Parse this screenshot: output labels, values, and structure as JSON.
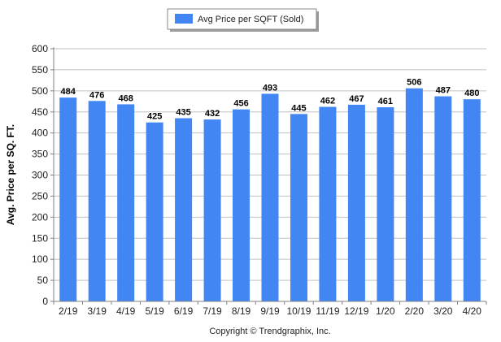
{
  "chart_data": {
    "type": "bar",
    "categories": [
      "2/19",
      "3/19",
      "4/19",
      "5/19",
      "6/19",
      "7/19",
      "8/19",
      "9/19",
      "10/19",
      "11/19",
      "12/19",
      "1/20",
      "2/20",
      "3/20",
      "4/20"
    ],
    "series": [
      {
        "name": "Avg Price per SQFT (Sold)",
        "values": [
          484,
          476,
          468,
          425,
          435,
          432,
          456,
          493,
          445,
          462,
          467,
          461,
          506,
          487,
          480
        ],
        "color": "#4286f4"
      }
    ],
    "ylabel": "Avg. Price per SQ. FT.",
    "ylim": [
      0,
      600
    ],
    "yticks": [
      0,
      50,
      100,
      150,
      200,
      250,
      300,
      350,
      400,
      450,
      500,
      550,
      600
    ],
    "grid": true,
    "legend_position": "top-center",
    "data_labels": true
  },
  "footer": {
    "copyright": "Copyright © Trendgraphix, Inc."
  },
  "colors": {
    "bar": "#4286f4",
    "grid": "#c0c0c0",
    "axis": "#808080"
  }
}
